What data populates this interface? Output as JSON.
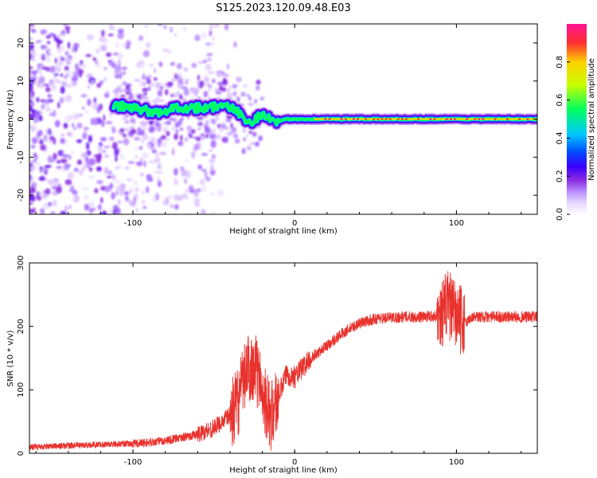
{
  "figure": {
    "title": "S125.2023.120.09.48.E03"
  },
  "chart_data": [
    {
      "type": "heatmap",
      "xlabel": "Height of straight line (km)",
      "ylabel": "Frequency (Hz)",
      "xlim": [
        -164,
        150
      ],
      "ylim": [
        -25,
        25
      ],
      "xticks": [
        -100,
        0,
        100
      ],
      "yticks": [
        -20,
        -10,
        0,
        10,
        20
      ],
      "grid": false,
      "colorbar": {
        "label": "Normalized spectral amplitude",
        "ticks": [
          0.0,
          0.2,
          0.4,
          0.6,
          0.8
        ],
        "range": [
          0,
          1
        ],
        "colormap": [
          "#ffffff",
          "#e6d6ff",
          "#b98cff",
          "#8a2be2",
          "#3a00ff",
          "#0050ff",
          "#00c8ff",
          "#00ff60",
          "#c8ff00",
          "#ffd000",
          "#ff3030",
          "#ff1493"
        ]
      },
      "ridge": [
        {
          "x": -110,
          "y": 3.5
        },
        {
          "x": -95,
          "y": 2.5
        },
        {
          "x": -85,
          "y": 1.5
        },
        {
          "x": -75,
          "y": 3.0
        },
        {
          "x": -65,
          "y": 3.0
        },
        {
          "x": -55,
          "y": 3.0
        },
        {
          "x": -45,
          "y": 3.5
        },
        {
          "x": -35,
          "y": 2.0
        },
        {
          "x": -28,
          "y": -1.0
        },
        {
          "x": -20,
          "y": 1.5
        },
        {
          "x": -12,
          "y": -1.0
        },
        {
          "x": -5,
          "y": 0.0
        },
        {
          "x": 10,
          "y": 0.0
        },
        {
          "x": 150,
          "y": 0.0
        }
      ]
    },
    {
      "type": "line",
      "xlabel": "Height of straight line (km)",
      "ylabel": "SNR (10 * v/v)",
      "xlim": [
        -164,
        150
      ],
      "ylim": [
        0,
        300
      ],
      "xticks": [
        -100,
        0,
        100
      ],
      "yticks": [
        0,
        100,
        200,
        300
      ],
      "grid": false,
      "series": [
        {
          "color": "#e8322d",
          "x": [
            -164,
            -140,
            -120,
            -100,
            -90,
            -80,
            -70,
            -60,
            -50,
            -40,
            -35,
            -30,
            -25,
            -20,
            -15,
            -10,
            -5,
            0,
            10,
            20,
            30,
            40,
            50,
            60,
            70,
            80,
            90,
            95,
            100,
            105,
            110,
            120,
            130,
            150
          ],
          "y": [
            10,
            12,
            14,
            15,
            17,
            20,
            25,
            30,
            40,
            60,
            80,
            130,
            140,
            100,
            55,
            90,
            125,
            120,
            150,
            170,
            190,
            205,
            212,
            214,
            215,
            215,
            218,
            235,
            215,
            205,
            215,
            215,
            215,
            215
          ]
        }
      ]
    }
  ]
}
